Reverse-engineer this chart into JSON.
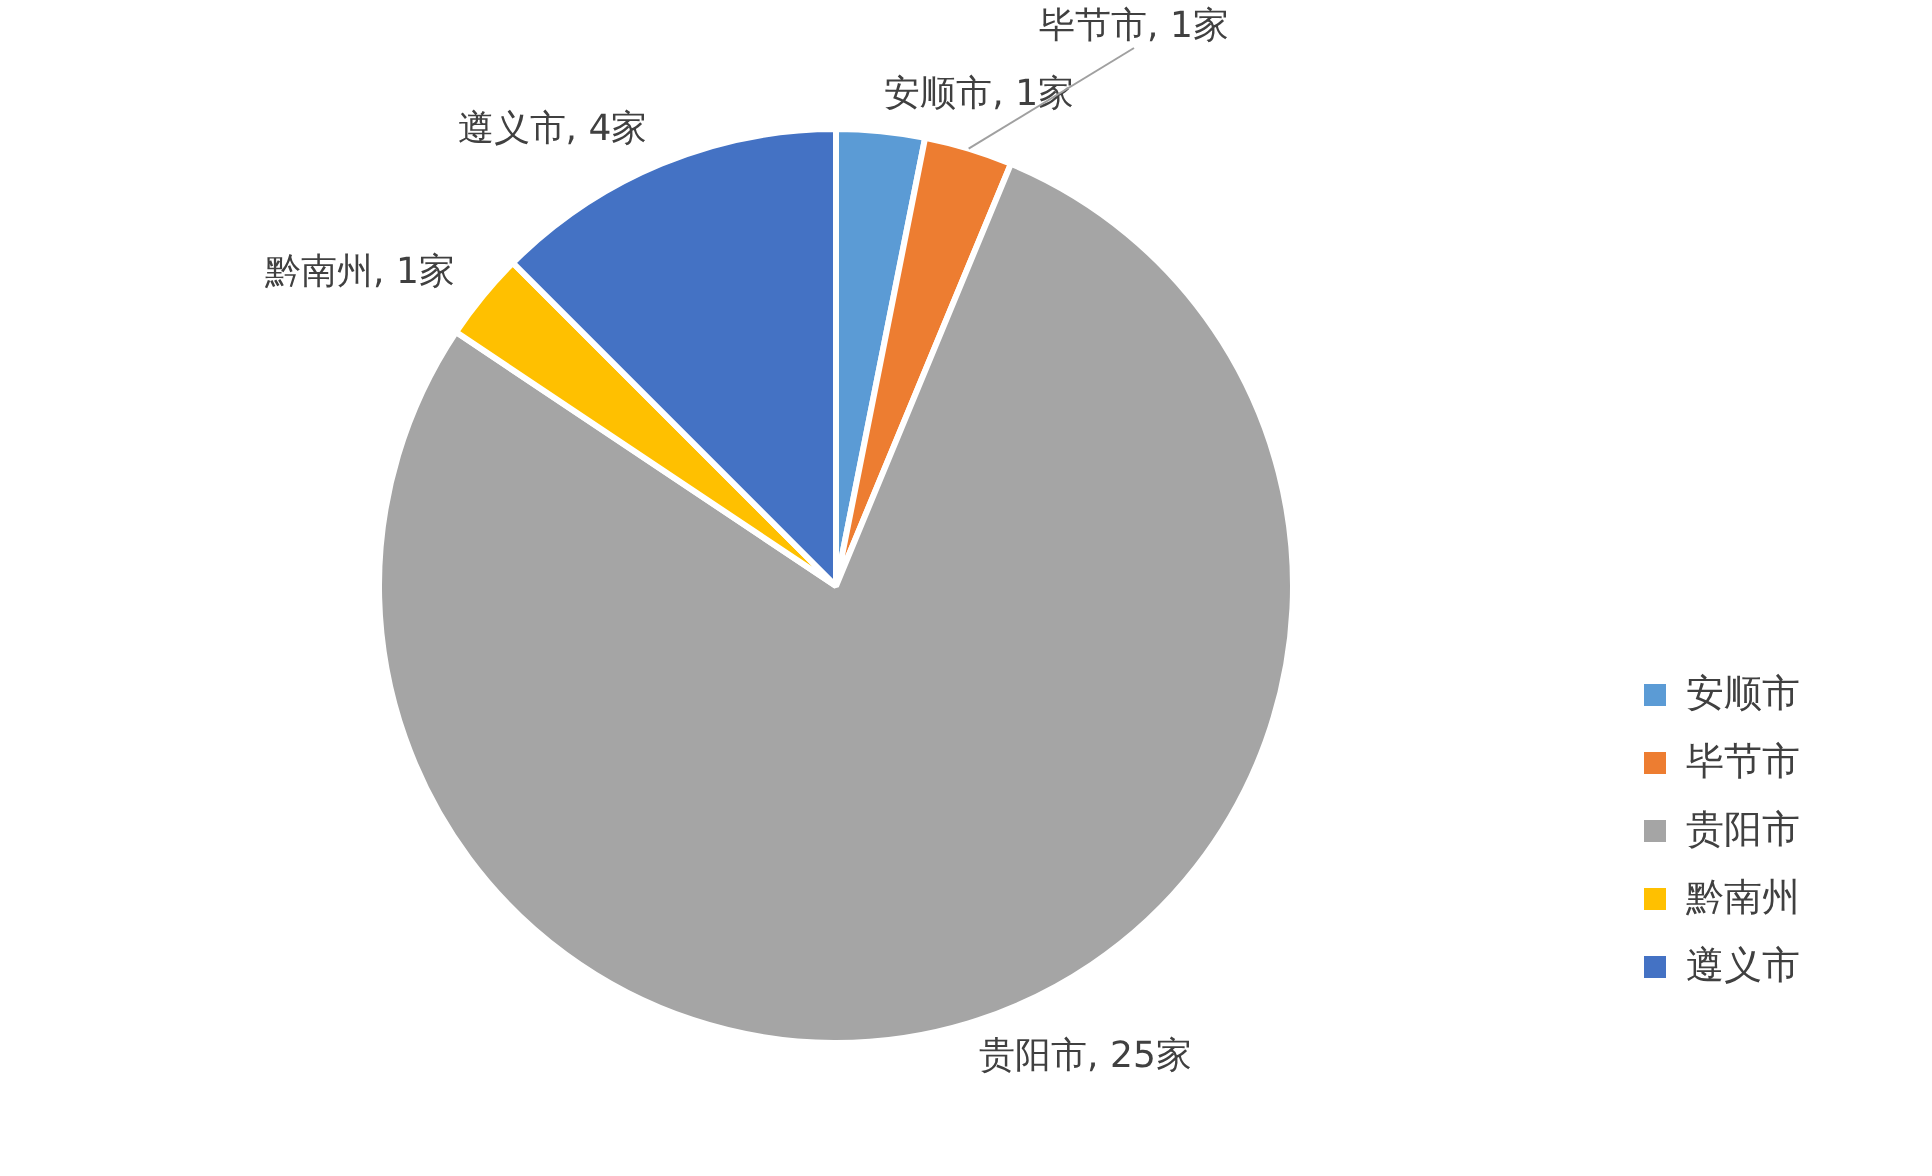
{
  "chart_data": {
    "type": "pie",
    "categories": [
      "安顺市",
      "毕节市",
      "贵阳市",
      "黔南州",
      "遵义市"
    ],
    "values": [
      1,
      1,
      25,
      1,
      4
    ],
    "colors": [
      "#5b9bd5",
      "#ed7d31",
      "#a5a5a5",
      "#ffc000",
      "#4472c4"
    ],
    "value_labels": [
      "安顺市, 1家",
      "毕节市, 1家",
      "贵阳市, 25家",
      "黔南州, 1家",
      "遵义市, 4家"
    ],
    "legend": "right"
  }
}
